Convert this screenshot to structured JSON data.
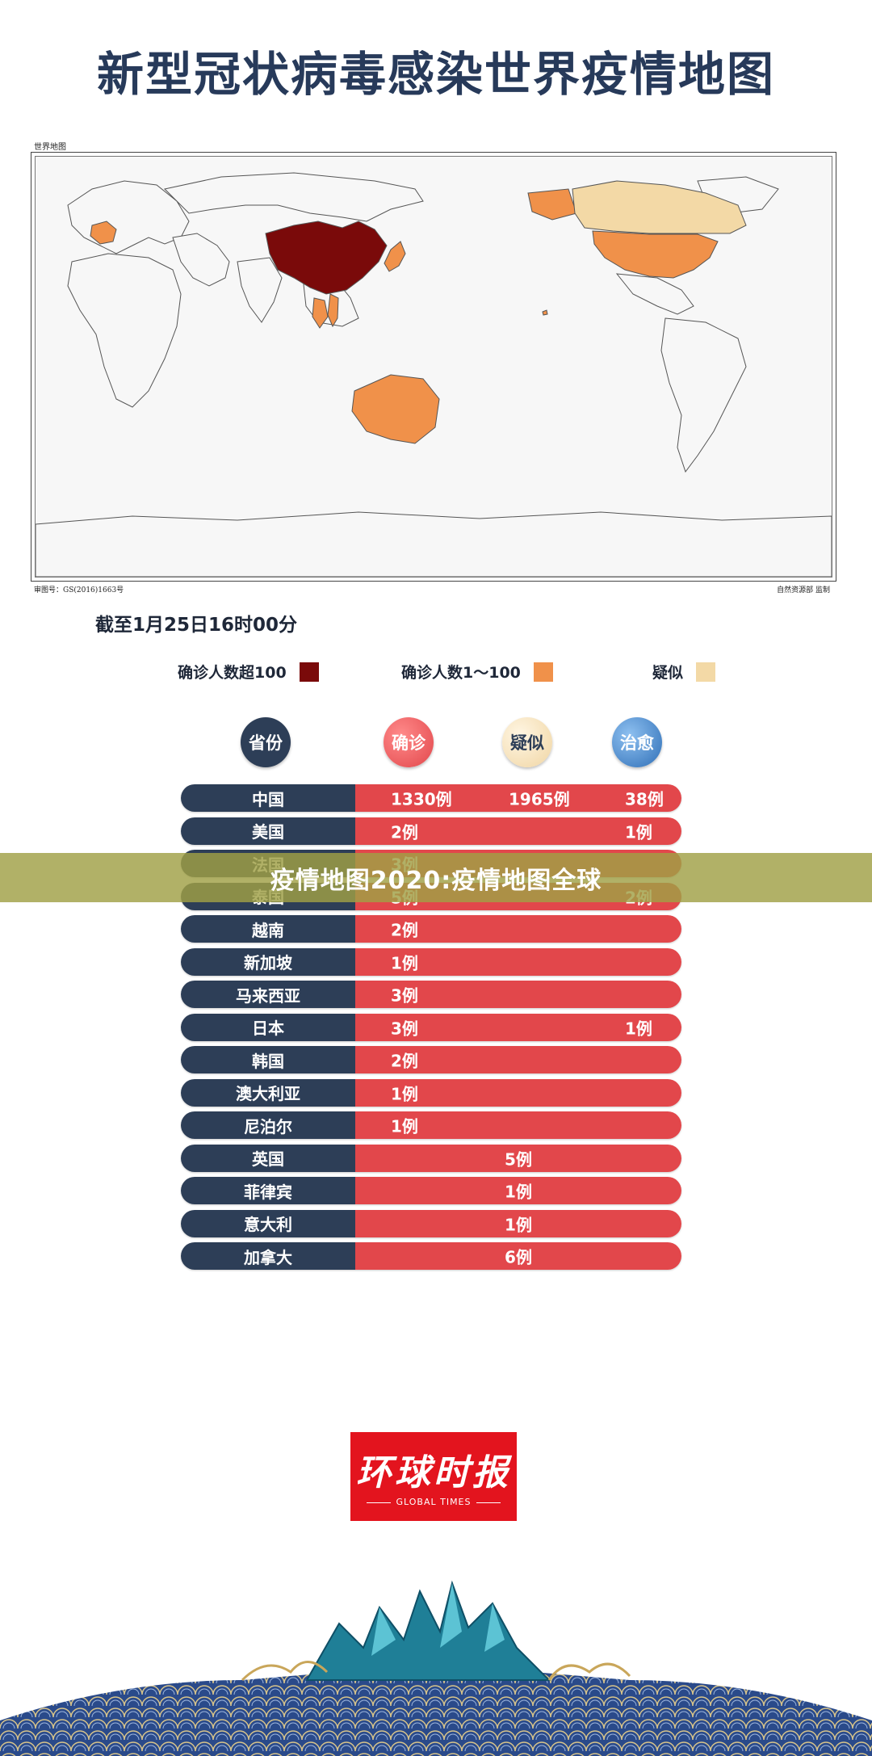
{
  "title": "新型冠状病毒感染世界疫情地图",
  "map": {
    "label": "世界地图",
    "approval": "审图号：GS(2016)1663号",
    "credit": "自然资源部 监制",
    "colors": {
      "over100": "#7a0a0a",
      "one_to_100": "#f0914a",
      "suspected": "#f3d9a6",
      "unaffected": "#f7f7f7",
      "border": "#555555"
    },
    "highlighted_regions": [
      {
        "region": "中国",
        "level": "over100"
      },
      {
        "region": "美国",
        "level": "one_to_100"
      },
      {
        "region": "澳大利亚",
        "level": "one_to_100"
      },
      {
        "region": "法国",
        "level": "one_to_100"
      },
      {
        "region": "日本",
        "level": "one_to_100"
      },
      {
        "region": "泰国",
        "level": "one_to_100"
      },
      {
        "region": "越南",
        "level": "one_to_100"
      },
      {
        "region": "加拿大",
        "level": "suspected"
      }
    ]
  },
  "as_of": "截至1月25日16时00分",
  "legend": {
    "over100": "确诊人数超100",
    "one_to_100": "确诊人数1～100",
    "suspected": "疑似"
  },
  "table": {
    "headers": {
      "province": "省份",
      "confirmed": "确诊",
      "suspected": "疑似",
      "cured": "治愈"
    },
    "header_colors": {
      "province": "#2d3e57",
      "confirmed": "#e2474b",
      "suspected": "#f3dcb0",
      "cured": "#2f6fb7"
    },
    "rows": [
      {
        "province": "中国",
        "confirmed": "1330例",
        "suspected": "1965例",
        "cured": "38例"
      },
      {
        "province": "美国",
        "confirmed": "2例",
        "suspected": "",
        "cured": "1例"
      },
      {
        "province": "法国",
        "confirmed": "3例",
        "suspected": "",
        "cured": ""
      },
      {
        "province": "泰国",
        "confirmed": "5例",
        "suspected": "",
        "cured": "2例"
      },
      {
        "province": "越南",
        "confirmed": "2例",
        "suspected": "",
        "cured": ""
      },
      {
        "province": "新加坡",
        "confirmed": "1例",
        "suspected": "",
        "cured": ""
      },
      {
        "province": "马来西亚",
        "confirmed": "3例",
        "suspected": "",
        "cured": ""
      },
      {
        "province": "日本",
        "confirmed": "3例",
        "suspected": "",
        "cured": "1例"
      },
      {
        "province": "韩国",
        "confirmed": "2例",
        "suspected": "",
        "cured": ""
      },
      {
        "province": "澳大利亚",
        "confirmed": "1例",
        "suspected": "",
        "cured": ""
      },
      {
        "province": "尼泊尔",
        "confirmed": "1例",
        "suspected": "",
        "cured": ""
      }
    ],
    "center_rows": [
      {
        "province": "英国",
        "value": "5例"
      },
      {
        "province": "菲律宾",
        "value": "1例"
      },
      {
        "province": "意大利",
        "value": "1例"
      },
      {
        "province": "加拿大",
        "value": "6例"
      }
    ]
  },
  "banner": "疫情地图2020:疫情地图全球",
  "logo": {
    "chinese": "环球时报",
    "english": "GLOBAL TIMES",
    "color": "#e3141e"
  }
}
